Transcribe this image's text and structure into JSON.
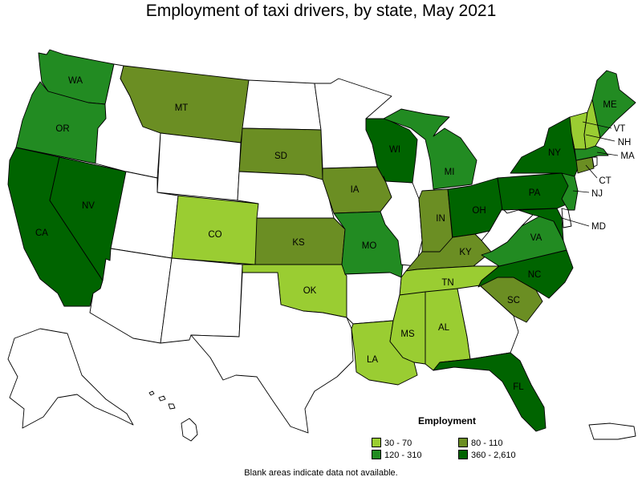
{
  "title": "Employment of taxi drivers, by state, May 2021",
  "legend": {
    "title": "Employment",
    "items": [
      {
        "label": "30 - 70",
        "color": "#9acd32"
      },
      {
        "label": "80 - 110",
        "color": "#6b8e23"
      },
      {
        "label": "120 - 310",
        "color": "#228b22"
      },
      {
        "label": "360 - 2,610",
        "color": "#006400"
      }
    ]
  },
  "footnote": "Blank areas indicate data not available.",
  "colors": {
    "no_data": "#ffffff",
    "border": "#000000"
  },
  "states": {
    "WA": {
      "label": "WA",
      "class": "120 - 310"
    },
    "OR": {
      "label": "OR",
      "class": "120 - 310"
    },
    "CA": {
      "label": "CA",
      "class": "360 - 2,610"
    },
    "NV": {
      "label": "NV",
      "class": "360 - 2,610"
    },
    "MT": {
      "label": "MT",
      "class": "80 - 110"
    },
    "SD": {
      "label": "SD",
      "class": "80 - 110"
    },
    "IA": {
      "label": "IA",
      "class": "80 - 110"
    },
    "KS": {
      "label": "KS",
      "class": "80 - 110"
    },
    "IN": {
      "label": "IN",
      "class": "80 - 110"
    },
    "KY": {
      "label": "KY",
      "class": "80 - 110"
    },
    "SC": {
      "label": "SC",
      "class": "80 - 110"
    },
    "CT": {
      "label": "CT",
      "class": "80 - 110"
    },
    "CO": {
      "label": "CO",
      "class": "30 - 70"
    },
    "OK": {
      "label": "OK",
      "class": "30 - 70"
    },
    "TN": {
      "label": "TN",
      "class": "30 - 70"
    },
    "LA": {
      "label": "LA",
      "class": "30 - 70"
    },
    "MS": {
      "label": "MS",
      "class": "30 - 70"
    },
    "AL": {
      "label": "AL",
      "class": "30 - 70"
    },
    "VT": {
      "label": "VT",
      "class": "30 - 70"
    },
    "NH": {
      "label": "NH",
      "class": "30 - 70"
    },
    "WI": {
      "label": "WI",
      "class": "360 - 2,610"
    },
    "NY": {
      "label": "NY",
      "class": "360 - 2,610"
    },
    "PA": {
      "label": "PA",
      "class": "360 - 2,610"
    },
    "OH": {
      "label": "OH",
      "class": "360 - 2,610"
    },
    "NC": {
      "label": "NC",
      "class": "360 - 2,610"
    },
    "FL": {
      "label": "FL",
      "class": "360 - 2,610"
    },
    "MD": {
      "label": "MD",
      "class": "360 - 2,610"
    },
    "MI": {
      "label": "MI",
      "class": "120 - 310"
    },
    "MO": {
      "label": "MO",
      "class": "120 - 310"
    },
    "VA": {
      "label": "VA",
      "class": "120 - 310"
    },
    "ME": {
      "label": "ME",
      "class": "120 - 310"
    },
    "MA": {
      "label": "MA",
      "class": "120 - 310"
    },
    "NJ": {
      "label": "NJ",
      "class": "120 - 310"
    },
    "ID": {
      "class": "none"
    },
    "WY": {
      "class": "none"
    },
    "UT": {
      "class": "none"
    },
    "AZ": {
      "class": "none"
    },
    "NM": {
      "class": "none"
    },
    "TX": {
      "class": "none"
    },
    "ND": {
      "class": "none"
    },
    "NE": {
      "class": "none"
    },
    "MN": {
      "class": "none"
    },
    "AR": {
      "class": "none"
    },
    "IL": {
      "class": "none"
    },
    "GA": {
      "class": "none"
    },
    "WV": {
      "class": "none"
    },
    "AK": {
      "class": "none"
    },
    "HI": {
      "class": "none"
    },
    "PR": {
      "class": "none"
    },
    "DE": {
      "class": "none"
    },
    "RI": {
      "class": "none"
    }
  }
}
